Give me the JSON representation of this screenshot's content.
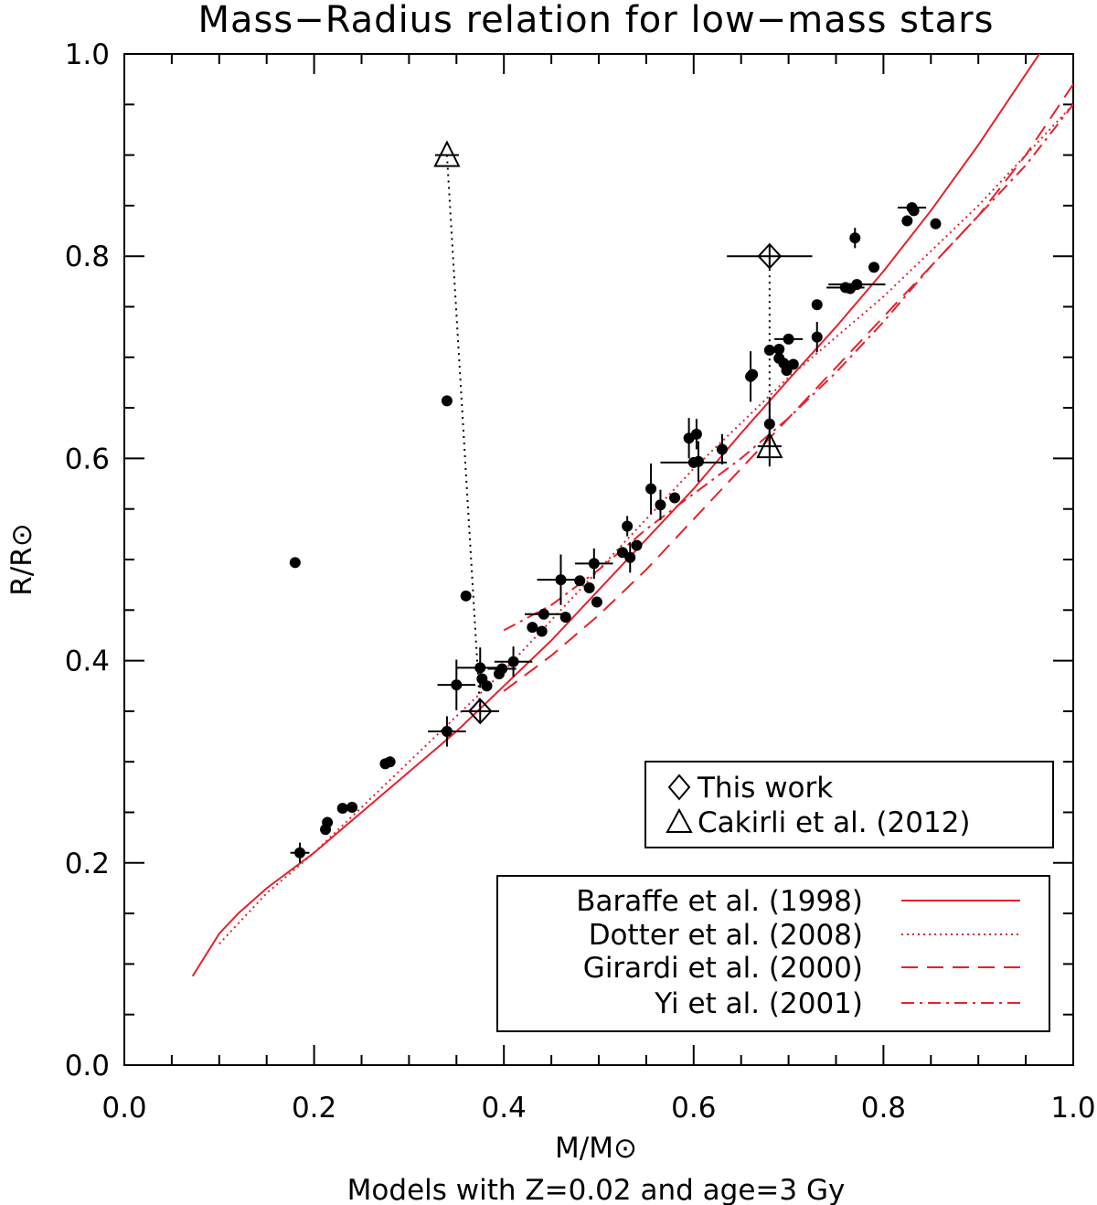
{
  "chart_data": {
    "type": "scatter",
    "title": "Mass−Radius relation for low−mass stars",
    "xlabel": "M/M⊙",
    "ylabel": "R/R⊙",
    "subtitle": "Models with Z=0.02 and age=3 Gy",
    "xlim": [
      0.0,
      1.0
    ],
    "ylim": [
      0.0,
      1.0
    ],
    "xticks": [
      "0.0",
      "0.2",
      "0.4",
      "0.6",
      "0.8",
      "1.0"
    ],
    "yticks": [
      "0.0",
      "0.2",
      "0.4",
      "0.6",
      "0.8",
      "1.0"
    ],
    "xtick_values": [
      0.0,
      0.2,
      0.4,
      0.6,
      0.8,
      1.0
    ],
    "ytick_values": [
      0.0,
      0.2,
      0.4,
      0.6,
      0.8,
      1.0
    ],
    "points": [
      {
        "x": 0.18,
        "y": 0.497
      },
      {
        "x": 0.185,
        "y": 0.21,
        "xerr": 0.01,
        "yerr": 0.01
      },
      {
        "x": 0.212,
        "y": 0.233
      },
      {
        "x": 0.214,
        "y": 0.24
      },
      {
        "x": 0.23,
        "y": 0.254
      },
      {
        "x": 0.24,
        "y": 0.255
      },
      {
        "x": 0.275,
        "y": 0.298
      },
      {
        "x": 0.28,
        "y": 0.3
      },
      {
        "x": 0.34,
        "y": 0.33,
        "xerr": 0.02,
        "yerr": 0.015
      },
      {
        "x": 0.34,
        "y": 0.657
      },
      {
        "x": 0.35,
        "y": 0.376,
        "xerr": 0.02,
        "yerr": 0.025
      },
      {
        "x": 0.36,
        "y": 0.464
      },
      {
        "x": 0.375,
        "y": 0.393,
        "xerr": 0.025,
        "yerr": 0.02
      },
      {
        "x": 0.377,
        "y": 0.382
      },
      {
        "x": 0.382,
        "y": 0.375
      },
      {
        "x": 0.395,
        "y": 0.387
      },
      {
        "x": 0.398,
        "y": 0.392,
        "xerr": 0.015
      },
      {
        "x": 0.41,
        "y": 0.399,
        "xerr": 0.02,
        "yerr": 0.015
      },
      {
        "x": 0.43,
        "y": 0.433
      },
      {
        "x": 0.44,
        "y": 0.429
      },
      {
        "x": 0.442,
        "y": 0.446,
        "xerr": 0.02
      },
      {
        "x": 0.46,
        "y": 0.48,
        "xerr": 0.025,
        "yerr": 0.025
      },
      {
        "x": 0.465,
        "y": 0.443
      },
      {
        "x": 0.48,
        "y": 0.479
      },
      {
        "x": 0.49,
        "y": 0.472
      },
      {
        "x": 0.495,
        "y": 0.496,
        "xerr": 0.02,
        "yerr": 0.015
      },
      {
        "x": 0.498,
        "y": 0.458
      },
      {
        "x": 0.525,
        "y": 0.507
      },
      {
        "x": 0.53,
        "y": 0.533,
        "yerr": 0.01
      },
      {
        "x": 0.533,
        "y": 0.502,
        "yerr": 0.015
      },
      {
        "x": 0.54,
        "y": 0.514
      },
      {
        "x": 0.555,
        "y": 0.57,
        "yerr": 0.025
      },
      {
        "x": 0.565,
        "y": 0.554,
        "yerr": 0.015
      },
      {
        "x": 0.58,
        "y": 0.561
      },
      {
        "x": 0.595,
        "y": 0.62,
        "yerr": 0.02
      },
      {
        "x": 0.6,
        "y": 0.596,
        "xerr": 0.035
      },
      {
        "x": 0.603,
        "y": 0.624,
        "yerr": 0.015
      },
      {
        "x": 0.605,
        "y": 0.597,
        "yerr": 0.02
      },
      {
        "x": 0.63,
        "y": 0.609,
        "yerr": 0.015
      },
      {
        "x": 0.66,
        "y": 0.681,
        "yerr": 0.025
      },
      {
        "x": 0.662,
        "y": 0.683
      },
      {
        "x": 0.68,
        "y": 0.634,
        "yerr": 0.025
      },
      {
        "x": 0.68,
        "y": 0.707
      },
      {
        "x": 0.69,
        "y": 0.708
      },
      {
        "x": 0.69,
        "y": 0.699
      },
      {
        "x": 0.695,
        "y": 0.694
      },
      {
        "x": 0.698,
        "y": 0.687
      },
      {
        "x": 0.7,
        "y": 0.718,
        "xerr": 0.015
      },
      {
        "x": 0.705,
        "y": 0.693
      },
      {
        "x": 0.73,
        "y": 0.752
      },
      {
        "x": 0.73,
        "y": 0.72,
        "yerr": 0.015
      },
      {
        "x": 0.76,
        "y": 0.769,
        "xerr": 0.02
      },
      {
        "x": 0.765,
        "y": 0.768
      },
      {
        "x": 0.77,
        "y": 0.818,
        "yerr": 0.01
      },
      {
        "x": 0.772,
        "y": 0.772,
        "xerr": 0.03
      },
      {
        "x": 0.79,
        "y": 0.789
      },
      {
        "x": 0.825,
        "y": 0.835
      },
      {
        "x": 0.83,
        "y": 0.848,
        "xerr": 0.015
      },
      {
        "x": 0.832,
        "y": 0.845
      },
      {
        "x": 0.855,
        "y": 0.832
      }
    ],
    "this_work": [
      {
        "x": 0.375,
        "y": 0.35,
        "xerr": 0.02
      },
      {
        "x": 0.68,
        "y": 0.8,
        "xerr": 0.045
      }
    ],
    "cakirli_2012": [
      {
        "x": 0.34,
        "y": 0.9
      },
      {
        "x": 0.68,
        "y": 0.612,
        "yerr": 0.02
      }
    ],
    "connectors": [
      {
        "x1": 0.34,
        "y1": 0.9,
        "x2": 0.375,
        "y2": 0.35
      },
      {
        "x1": 0.68,
        "y1": 0.8,
        "x2": 0.68,
        "y2": 0.612
      }
    ],
    "series": [
      {
        "name": "Baraffe et al. (1998)",
        "style": "solid",
        "x": [
          0.072,
          0.08,
          0.09,
          0.1,
          0.12,
          0.15,
          0.2,
          0.25,
          0.3,
          0.35,
          0.4,
          0.45,
          0.5,
          0.55,
          0.6,
          0.65,
          0.7,
          0.75,
          0.8,
          0.85,
          0.9,
          0.95,
          1.0
        ],
        "y": [
          0.088,
          0.1,
          0.115,
          0.13,
          0.15,
          0.175,
          0.21,
          0.25,
          0.29,
          0.33,
          0.375,
          0.42,
          0.47,
          0.52,
          0.57,
          0.625,
          0.678,
          0.73,
          0.785,
          0.845,
          0.91,
          0.98,
          1.05
        ]
      },
      {
        "name": "Dotter et al. (2008)",
        "style": "dotted",
        "x": [
          0.1,
          0.15,
          0.2,
          0.25,
          0.3,
          0.35,
          0.4,
          0.45,
          0.5,
          0.55,
          0.6,
          0.65,
          0.7,
          0.75,
          0.8,
          0.85,
          0.9,
          0.95,
          1.0
        ],
        "y": [
          0.12,
          0.17,
          0.21,
          0.255,
          0.3,
          0.345,
          0.39,
          0.44,
          0.49,
          0.54,
          0.59,
          0.635,
          0.68,
          0.72,
          0.76,
          0.805,
          0.85,
          0.9,
          0.95
        ]
      },
      {
        "name": "Girardi et al. (2000)",
        "style": "dashed",
        "x": [
          0.4,
          0.45,
          0.5,
          0.55,
          0.6,
          0.65,
          0.7,
          0.75,
          0.8,
          0.85,
          0.9,
          0.95,
          1.0
        ],
        "y": [
          0.37,
          0.405,
          0.445,
          0.49,
          0.54,
          0.59,
          0.64,
          0.69,
          0.74,
          0.79,
          0.84,
          0.9,
          0.97
        ]
      },
      {
        "name": "Yi et al. (2001)",
        "style": "dashdot",
        "x": [
          0.4,
          0.45,
          0.5,
          0.55,
          0.6,
          0.65,
          0.7,
          0.75,
          0.8,
          0.85,
          0.9,
          0.95,
          1.0
        ],
        "y": [
          0.43,
          0.455,
          0.49,
          0.53,
          0.565,
          0.6,
          0.64,
          0.685,
          0.735,
          0.79,
          0.84,
          0.89,
          0.95
        ]
      }
    ],
    "legend_markers": [
      {
        "symbol": "diamond",
        "label": "This work"
      },
      {
        "symbol": "triangle",
        "label": "Cakirli et al. (2012)"
      }
    ],
    "legend_lines": [
      {
        "label": "Baraffe et al. (1998)",
        "style": "solid"
      },
      {
        "label": "Dotter et al. (2008)",
        "style": "dotted"
      },
      {
        "label": "Girardi et al. (2000)",
        "style": "dashed"
      },
      {
        "label": "Yi et al. (2001)",
        "style": "dashdot"
      }
    ],
    "colors": {
      "models": "#e8202a",
      "points": "#000000"
    }
  }
}
